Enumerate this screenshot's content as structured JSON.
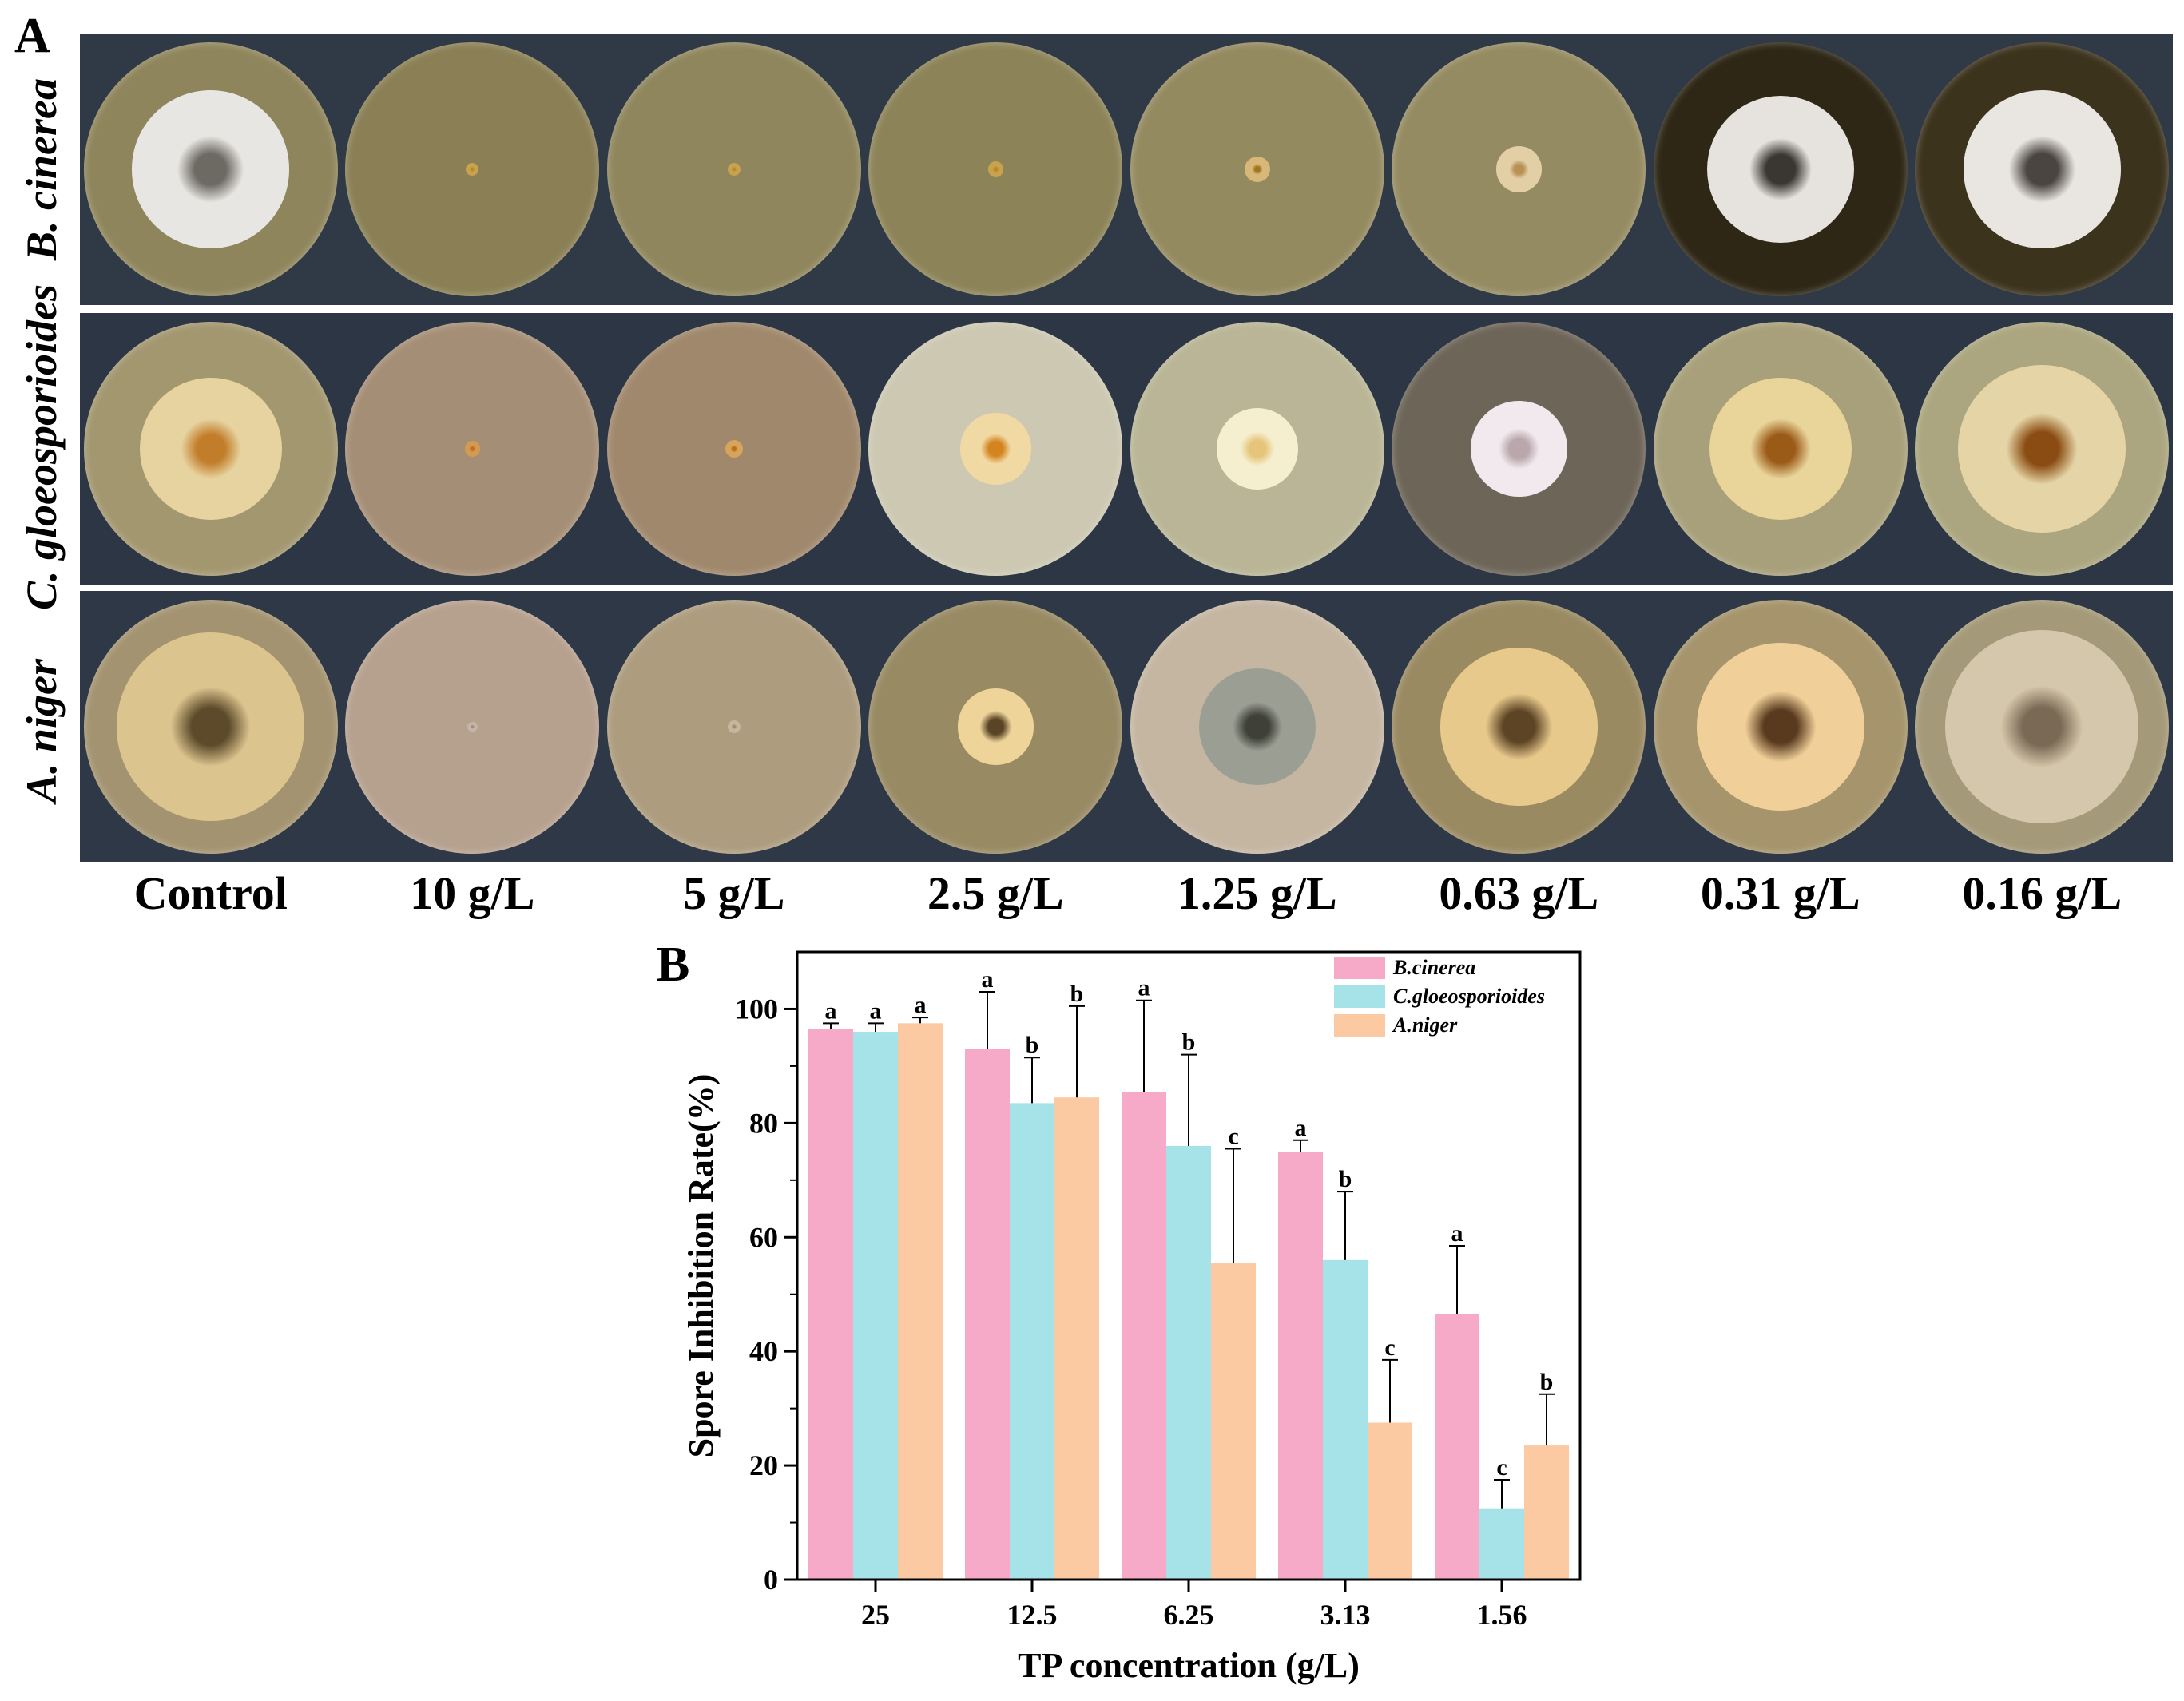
{
  "panel_a": {
    "letter": "A",
    "rows": [
      {
        "label": "B. cinerea",
        "bg": "#2f3a46",
        "plates": [
          {
            "agar": "#8f855c",
            "colony": "#e8e6e2",
            "center": "#6d6a64",
            "size": 0.62
          },
          {
            "agar": "#8a7f55",
            "colony": "#c8a24c",
            "center": "#b8872c",
            "size": 0.05
          },
          {
            "agar": "#8f865d",
            "colony": "#c8a24c",
            "center": "#b8872c",
            "size": 0.05
          },
          {
            "agar": "#8c8358",
            "colony": "#c8a24c",
            "center": "#b8872c",
            "size": 0.06
          },
          {
            "agar": "#948a60",
            "colony": "#d7b878",
            "center": "#a0751f",
            "size": 0.1
          },
          {
            "agar": "#958b62",
            "colony": "#e3cfa6",
            "center": "#b99155",
            "size": 0.18
          },
          {
            "agar": "#2e2716",
            "colony": "#e6e3df",
            "center": "#3a3631",
            "size": 0.58
          },
          {
            "agar": "#3c331d",
            "colony": "#e9e6e1",
            "center": "#4a4540",
            "size": 0.62
          }
        ]
      },
      {
        "label": "C. gloeosporioides",
        "bg": "#2c3644",
        "plates": [
          {
            "agar": "#a39770",
            "colony": "#e7d3a0",
            "center": "#c27d2a",
            "size": 0.56
          },
          {
            "agar": "#a58e76",
            "colony": "#d39a52",
            "center": "#c0701f",
            "size": 0.06
          },
          {
            "agar": "#a0886c",
            "colony": "#d8a35a",
            "center": "#b8701f",
            "size": 0.07
          },
          {
            "agar": "#cdc8b2",
            "colony": "#f1d9a4",
            "center": "#d4841e",
            "size": 0.28
          },
          {
            "agar": "#b9b596",
            "colony": "#f5efcf",
            "center": "#e6c57a",
            "size": 0.32
          },
          {
            "agar": "#6d6558",
            "colony": "#f1e9ee",
            "center": "#b9a7ab",
            "size": 0.38
          },
          {
            "agar": "#a8a07a",
            "colony": "#e9d49a",
            "center": "#9a5a18",
            "size": 0.56
          },
          {
            "agar": "#aba67f",
            "colony": "#e5d4a6",
            "center": "#8a4c12",
            "size": 0.66
          }
        ]
      },
      {
        "label": "A. niger",
        "bg": "#2e3846",
        "plates": [
          {
            "agar": "#a39370",
            "colony": "#dcc48e",
            "center": "#5c4a2a",
            "size": 0.74
          },
          {
            "agar": "#b6a08e",
            "colony": "#c6b5a5",
            "center": "#9a8e84",
            "size": 0.04
          },
          {
            "agar": "#ad9c7e",
            "colony": "#c8b69c",
            "center": "#9c8c76",
            "size": 0.05
          },
          {
            "agar": "#988a63",
            "colony": "#efd49a",
            "center": "#5a4426",
            "size": 0.3
          },
          {
            "agar": "#c5b6a2",
            "colony": "#9b9f93",
            "center": "#3f4038",
            "size": 0.46
          },
          {
            "agar": "#9a8a62",
            "colony": "#e8c98c",
            "center": "#5c4424",
            "size": 0.62
          },
          {
            "agar": "#a5946c",
            "colony": "#f0cf98",
            "center": "#5a3a1f",
            "size": 0.66
          },
          {
            "agar": "#a49978",
            "colony": "#d5c7ab",
            "center": "#7a6a55",
            "size": 0.76
          }
        ]
      }
    ],
    "concentrations": [
      "Control",
      "10 g/L",
      "5 g/L",
      "2.5 g/L",
      "1.25 g/L",
      "0.63 g/L",
      "0.31 g/L",
      "0.16 g/L"
    ]
  },
  "chart_data": {
    "panel_letter": "B",
    "type": "bar",
    "categories": [
      "25",
      "12.5",
      "6.25",
      "3.13",
      "1.56"
    ],
    "xlabel": "TP concentration (g/L)",
    "ylabel": "Spore Inhibition Rate(%)",
    "ylim": [
      0,
      110
    ],
    "yticks": [
      0,
      20,
      40,
      60,
      80,
      100
    ],
    "legend_position": "top-right",
    "grid": false,
    "series": [
      {
        "name": "B.cinerea",
        "color": "#f7aac8",
        "values": [
          96.5,
          93,
          85.5,
          75,
          46.5
        ],
        "errors": [
          1,
          10,
          16,
          2,
          12
        ],
        "letters": [
          "a",
          "a",
          "a",
          "a",
          "a"
        ]
      },
      {
        "name": "C.gloeosporioides",
        "color": "#a6e3e8",
        "values": [
          96,
          83.5,
          76,
          56,
          12.5
        ],
        "errors": [
          1.5,
          8,
          16,
          12,
          5
        ],
        "letters": [
          "a",
          "b",
          "b",
          "b",
          "c"
        ]
      },
      {
        "name": "A.niger",
        "color": "#fbcaa2",
        "values": [
          97.5,
          84.5,
          55.5,
          27.5,
          23.5
        ],
        "errors": [
          1,
          16,
          20,
          11,
          9
        ],
        "letters": [
          "a",
          "b",
          "c",
          "c",
          "b"
        ]
      }
    ]
  }
}
